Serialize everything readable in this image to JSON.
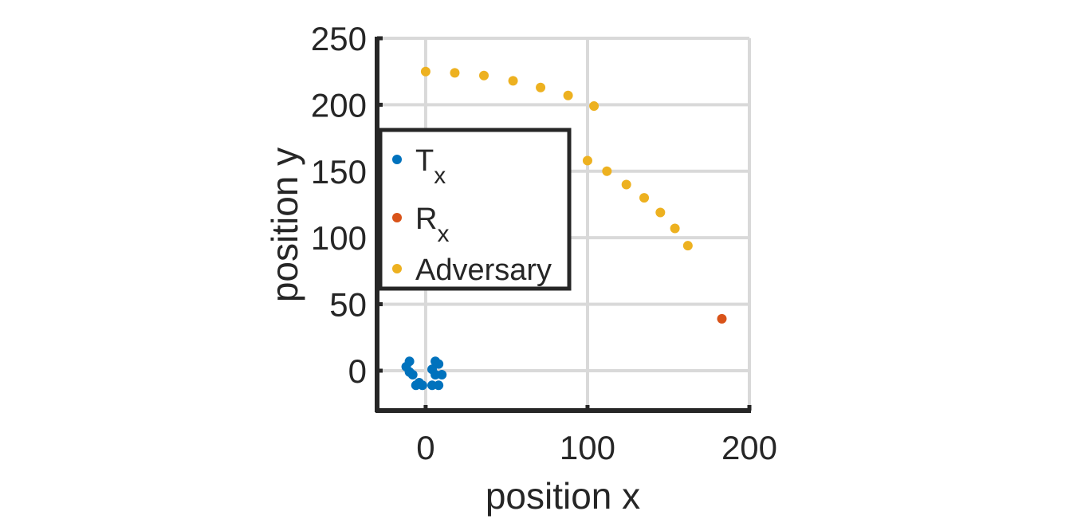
{
  "chart_data": {
    "type": "scatter",
    "xlabel": "position x",
    "ylabel": "position y",
    "xlim": [
      -30,
      200
    ],
    "ylim": [
      -30,
      250
    ],
    "xticks": [
      0,
      100,
      200
    ],
    "yticks": [
      0,
      50,
      100,
      150,
      200,
      250
    ],
    "grid": true,
    "legend_position": "middle-left",
    "series": [
      {
        "name": "T",
        "name_sub": "x",
        "color": "#0072BD",
        "x": [
          -12,
          -10,
          -8,
          -10,
          -6,
          -4,
          -2,
          6,
          8,
          4,
          6,
          10,
          4,
          8
        ],
        "y": [
          3,
          7,
          -3,
          -1,
          -11,
          -9,
          -11,
          7,
          5,
          1,
          -3,
          -3,
          -11,
          -11
        ]
      },
      {
        "name": "R",
        "name_sub": "x",
        "color": "#D95319",
        "x": [
          183
        ],
        "y": [
          39
        ]
      },
      {
        "name": "Adversary",
        "name_sub": "",
        "color": "#EDB120",
        "x": [
          0,
          18,
          36,
          54,
          71,
          88,
          104,
          100,
          112,
          124,
          135,
          145,
          154,
          162
        ],
        "y": [
          225,
          224,
          222,
          218,
          213,
          207,
          199,
          158,
          150,
          140,
          130,
          119,
          107,
          94
        ]
      }
    ]
  }
}
